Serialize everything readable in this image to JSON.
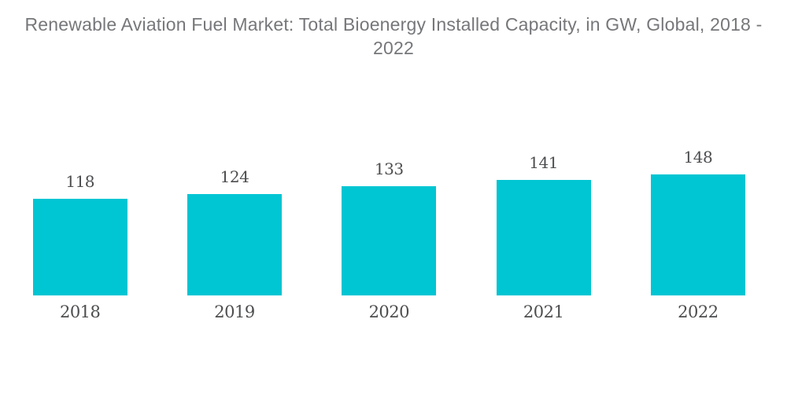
{
  "title": {
    "line1": "Renewable Aviation Fuel Market: Total Bioenergy Installed Capacity, in GW, Global, 2018 -",
    "line2": "2022"
  },
  "chart_data": {
    "type": "bar",
    "title": "Renewable Aviation Fuel Market: Total Bioenergy Installed Capacity, in GW, Global, 2018 - 2022",
    "categories": [
      "2018",
      "2019",
      "2020",
      "2021",
      "2022"
    ],
    "values": [
      118,
      124,
      133,
      141,
      148
    ],
    "unit": "GW",
    "xlabel": "",
    "ylabel": "",
    "ylim": [
      0,
      160
    ],
    "grid": false,
    "legend": false,
    "axes_visible": false,
    "data_labels": true,
    "bar_color": "#00C5D2",
    "label_color": "#4C4D4F",
    "title_color": "#76777A",
    "background": "#FFFFFF"
  }
}
